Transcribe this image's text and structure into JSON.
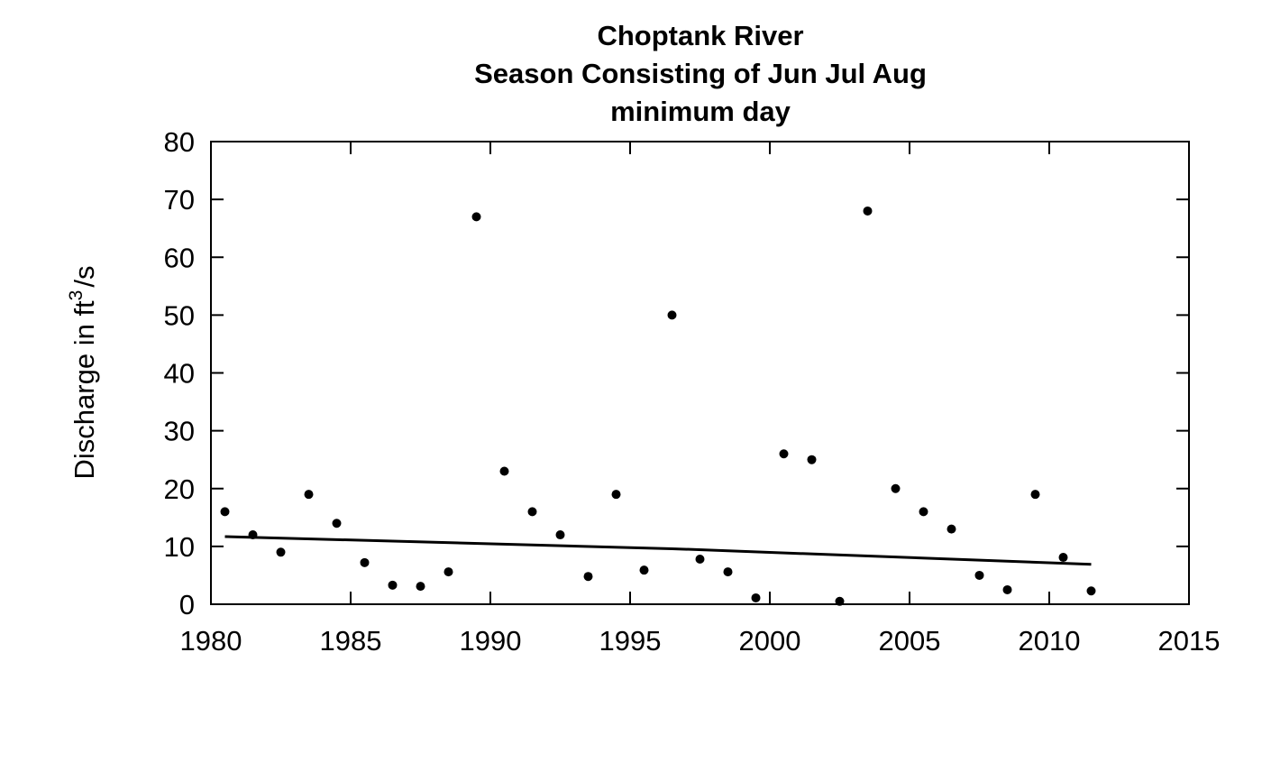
{
  "chart_data": {
    "type": "scatter",
    "title_lines": [
      "Choptank River",
      "Season Consisting of Jun Jul Aug",
      "minimum day"
    ],
    "ylabel": {
      "main": "Discharge in ft",
      "superscript": "3",
      "suffix": "/s"
    },
    "xlim": [
      1980,
      2015
    ],
    "ylim": [
      0,
      80
    ],
    "x_ticks": [
      1980,
      1985,
      1990,
      1995,
      2000,
      2005,
      2010,
      2015
    ],
    "y_ticks": [
      0,
      10,
      20,
      30,
      40,
      50,
      60,
      70,
      80
    ],
    "points": [
      {
        "x": 1980.5,
        "y": 16
      },
      {
        "x": 1981.5,
        "y": 12
      },
      {
        "x": 1982.5,
        "y": 9
      },
      {
        "x": 1983.5,
        "y": 19
      },
      {
        "x": 1984.5,
        "y": 14
      },
      {
        "x": 1985.5,
        "y": 7.2
      },
      {
        "x": 1986.5,
        "y": 3.3
      },
      {
        "x": 1987.5,
        "y": 3.1
      },
      {
        "x": 1988.5,
        "y": 5.6
      },
      {
        "x": 1989.5,
        "y": 67
      },
      {
        "x": 1990.5,
        "y": 23
      },
      {
        "x": 1991.5,
        "y": 16
      },
      {
        "x": 1992.5,
        "y": 12
      },
      {
        "x": 1993.5,
        "y": 4.8
      },
      {
        "x": 1994.5,
        "y": 19
      },
      {
        "x": 1995.5,
        "y": 5.9
      },
      {
        "x": 1996.5,
        "y": 50
      },
      {
        "x": 1997.5,
        "y": 7.8
      },
      {
        "x": 1998.5,
        "y": 5.6
      },
      {
        "x": 1999.5,
        "y": 1.1
      },
      {
        "x": 2000.5,
        "y": 26
      },
      {
        "x": 2001.5,
        "y": 25
      },
      {
        "x": 2002.5,
        "y": 0.5
      },
      {
        "x": 2003.5,
        "y": 68
      },
      {
        "x": 2004.5,
        "y": 20
      },
      {
        "x": 2005.5,
        "y": 16
      },
      {
        "x": 2006.5,
        "y": 13
      },
      {
        "x": 2007.5,
        "y": 5
      },
      {
        "x": 2008.5,
        "y": 2.5
      },
      {
        "x": 2009.5,
        "y": 19
      },
      {
        "x": 2010.5,
        "y": 8.1
      },
      {
        "x": 2011.5,
        "y": 2.3
      }
    ],
    "trend_line": [
      {
        "x": 1980.5,
        "y": 11.7
      },
      {
        "x": 1996.5,
        "y": 9.6
      },
      {
        "x": 2011.5,
        "y": 6.9
      }
    ],
    "grid": false,
    "legend": "none"
  }
}
